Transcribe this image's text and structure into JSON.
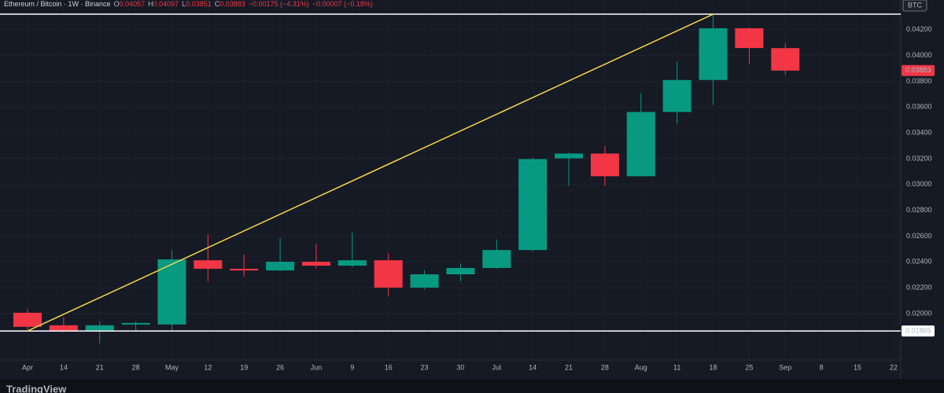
{
  "chart_data": {
    "type": "candlestick",
    "title": "Ethereum / Bitcoin · 1W · Binance",
    "ohlc_labels": [
      "O",
      "H",
      "L",
      "C"
    ],
    "change": "−0.00175 (−4.31%)",
    "change2": "−0.00007 (−0.18%)",
    "currency": "BTC",
    "footer": "TradingView",
    "categories": [
      "Apr",
      "14",
      "21",
      "28",
      "May",
      "12",
      "19",
      "26",
      "Jun",
      "9",
      "16",
      "23",
      "30",
      "Jul",
      "14",
      "21",
      "28",
      "Aug",
      "11",
      "18",
      "25",
      "Sep",
      "8",
      "15",
      "22"
    ],
    "open": [
      0.02006,
      0.01909,
      0.01866,
      0.01915,
      0.01915,
      0.02413,
      0.02347,
      0.02334,
      0.02401,
      0.02371,
      0.02413,
      0.02201,
      0.02304,
      0.02353,
      0.02492,
      0.03203,
      0.0324,
      0.03064,
      0.03562,
      0.0381,
      0.04211,
      0.04057,
      null,
      null,
      null
    ],
    "high": [
      0.02036,
      0.0197,
      0.01939,
      0.01939,
      0.02492,
      0.02614,
      0.02456,
      0.02584,
      0.02541,
      0.02626,
      0.02468,
      0.02334,
      0.02389,
      0.02572,
      0.03209,
      0.03246,
      0.033,
      0.03708,
      0.0395,
      0.0432,
      0.04217,
      0.04097,
      null,
      null,
      null
    ],
    "low": [
      0.01872,
      0.01854,
      0.01769,
      0.01872,
      0.0186,
      0.02249,
      0.02286,
      0.02328,
      0.02347,
      0.02359,
      0.02134,
      0.02188,
      0.02249,
      0.02347,
      0.0248,
      0.0299,
      0.0299,
      0.03064,
      0.03471,
      0.03617,
      0.03932,
      0.03851,
      null,
      null,
      null
    ],
    "close": [
      0.01897,
      0.0186,
      0.01909,
      0.01927,
      0.0242,
      0.02347,
      0.02334,
      0.02401,
      0.02371,
      0.02413,
      0.02201,
      0.02304,
      0.02353,
      0.02492,
      0.03197,
      0.0324,
      0.03064,
      0.03562,
      0.0381,
      0.04211,
      0.04058,
      0.03883,
      null,
      null,
      null
    ],
    "up_color": "#089981",
    "down_color": "#f23645",
    "ylim": [
      0.0164,
      0.0443
    ],
    "yticks": [
      {
        "value": 0.0186,
        "label": "0.01860"
      },
      {
        "value": 0.02,
        "label": "0.02000"
      },
      {
        "value": 0.022,
        "label": "0.02200"
      },
      {
        "value": 0.024,
        "label": "0.02400"
      },
      {
        "value": 0.026,
        "label": "0.02600"
      },
      {
        "value": 0.028,
        "label": "0.02800"
      },
      {
        "value": 0.03,
        "label": "0.03000"
      },
      {
        "value": 0.032,
        "label": "0.03200"
      },
      {
        "value": 0.034,
        "label": "0.03400"
      },
      {
        "value": 0.036,
        "label": "0.03600"
      },
      {
        "value": 0.038,
        "label": "0.03800"
      },
      {
        "value": 0.04,
        "label": "0.04000"
      },
      {
        "value": 0.042,
        "label": "0.04200"
      }
    ],
    "grid": true,
    "hlines": [
      {
        "value": 0.01865,
        "color": "#ffffff",
        "tag": true
      },
      {
        "value": 0.0432,
        "color": "#ffffff",
        "tag": false
      }
    ],
    "trendline": {
      "from": [
        "Apr",
        0.01865
      ],
      "to": [
        "18",
        0.0432
      ],
      "color": "#f5d94a"
    }
  }
}
